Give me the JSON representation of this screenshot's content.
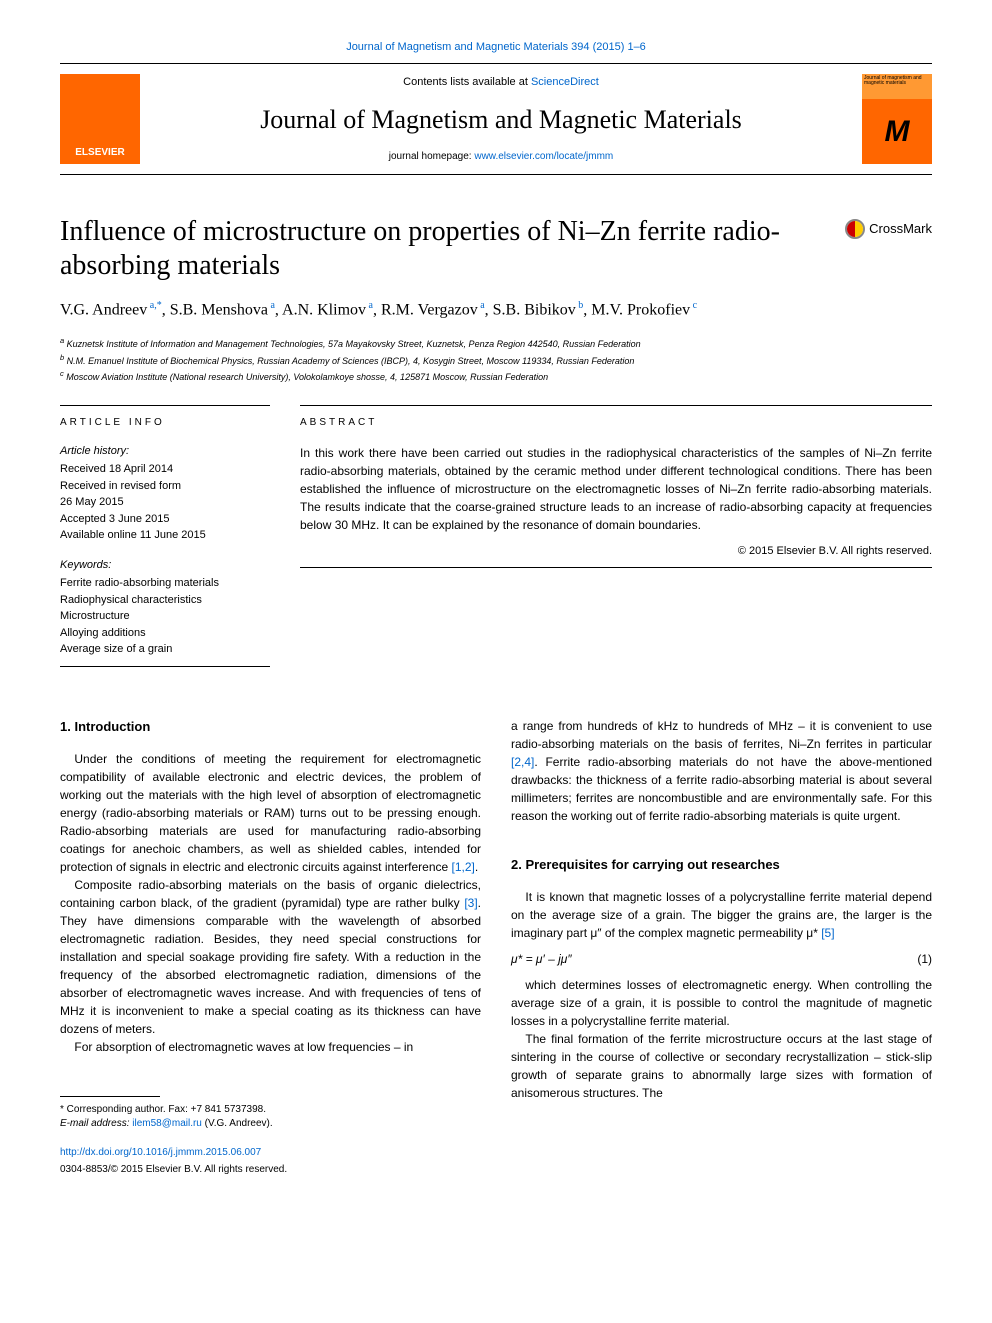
{
  "top_citation": "Journal of Magnetism and Magnetic Materials 394 (2015) 1–6",
  "header": {
    "elsevier": "ELSEVIER",
    "contents_prefix": "Contents lists available at ",
    "contents_link": "ScienceDirect",
    "journal_title": "Journal of Magnetism and Magnetic Materials",
    "homepage_prefix": "journal homepage: ",
    "homepage_link": "www.elsevier.com/locate/jmmm",
    "cover_text": "Journal of magnetism and magnetic materials",
    "cover_glyph": "M"
  },
  "crossmark": "CrossMark",
  "title": "Influence of microstructure on properties of Ni–Zn ferrite radio-absorbing materials",
  "authors_html": [
    {
      "name": "V.G. Andreev",
      "sup": "a,*"
    },
    {
      "name": "S.B. Menshova",
      "sup": "a"
    },
    {
      "name": "A.N. Klimov",
      "sup": "a"
    },
    {
      "name": "R.M. Vergazov",
      "sup": "a"
    },
    {
      "name": "S.B. Bibikov",
      "sup": "b"
    },
    {
      "name": "M.V. Prokofiev",
      "sup": "c"
    }
  ],
  "affiliations": [
    {
      "sup": "a",
      "text": "Kuznetsk Institute of Information and Management Technologies, 57a Mayakovsky Street, Kuznetsk, Penza Region 442540, Russian Federation"
    },
    {
      "sup": "b",
      "text": "N.M. Emanuel Institute of Biochemical Physics, Russian Academy of Sciences (IBCP), 4, Kosygin Street, Moscow 119334, Russian Federation"
    },
    {
      "sup": "c",
      "text": "Moscow Aviation Institute (National research University), Volokolamkoye shosse, 4, 125871 Moscow, Russian Federation"
    }
  ],
  "article_info": {
    "heading": "ARTICLE INFO",
    "history_label": "Article history:",
    "history": "Received 18 April 2014\nReceived in revised form\n26 May 2015\nAccepted 3 June 2015\nAvailable online 11 June 2015",
    "keywords_label": "Keywords:",
    "keywords": "Ferrite radio-absorbing materials\nRadiophysical characteristics\nMicrostructure\nAlloying additions\nAverage size of a grain"
  },
  "abstract": {
    "heading": "ABSTRACT",
    "text": "In this work there have been carried out studies in the radiophysical characteristics of the samples of Ni–Zn ferrite radio-absorbing materials, obtained by the ceramic method under different technological conditions. There has been established the influence of microstructure on the electromagnetic losses of Ni–Zn ferrite radio-absorbing materials. The results indicate that the coarse-grained structure leads to an increase of radio-absorbing capacity at frequencies below 30 MHz. It can be explained by the resonance of domain boundaries.",
    "copyright": "© 2015 Elsevier B.V. All rights reserved."
  },
  "sections": {
    "intro_heading": "1. Introduction",
    "intro_p1": "Under the conditions of meeting the requirement for electromagnetic compatibility of available electronic and electric devices, the problem of working out the materials with the high level of absorption of electromagnetic energy (radio-absorbing materials or RAM) turns out to be pressing enough. Radio-absorbing materials are used for manufacturing radio-absorbing coatings for anechoic chambers, as well as shielded cables, intended for protection of signals in electric and electronic circuits against interference ",
    "intro_ref1": "[1,2]",
    "intro_p1_end": ".",
    "intro_p2a": "Composite radio-absorbing materials on the basis of organic dielectrics, containing carbon black, of the gradient (pyramidal) type are rather bulky ",
    "intro_ref2": "[3]",
    "intro_p2b": ". They have dimensions comparable with the wavelength of absorbed electromagnetic radiation. Besides, they need special constructions for installation and special soakage providing fire safety. With a reduction in the frequency of the absorbed electromagnetic radiation, dimensions of the absorber of electromagnetic waves increase. And with frequencies of tens of MHz it is inconvenient to make a special coating as its thickness can have dozens of meters.",
    "intro_p3": "For absorption of electromagnetic waves at low frequencies – in",
    "col2_p1a": "a range from hundreds of kHz to hundreds of MHz – it is convenient to use radio-absorbing materials on the basis of ferrites, Ni–Zn ferrites in particular ",
    "col2_ref1": "[2,4]",
    "col2_p1b": ". Ferrite radio-absorbing materials do not have the above-mentioned drawbacks: the thickness of a ferrite radio-absorbing material is about several millimeters; ferrites are noncombustible and are environmentally safe. For this reason the working out of ferrite radio-absorbing materials is quite urgent.",
    "prereq_heading": "2. Prerequisites for carrying out researches",
    "prereq_p1a": "It is known that magnetic losses of a polycrystalline ferrite material depend on the average size of a grain. The bigger the grains are, the larger is the imaginary part μ″ of the complex magnetic permeability μ* ",
    "prereq_ref1": "[5]",
    "eq1": "μ* = μ′ – jμ″",
    "eq1_num": "(1)",
    "prereq_p2": "which determines losses of electromagnetic energy. When controlling the average size of a grain, it is possible to control the magnitude of magnetic losses in a polycrystalline ferrite material.",
    "prereq_p3": "The final formation of the ferrite microstructure occurs at the last stage of sintering in the course of collective or secondary recrystallization – stick-slip growth of separate grains to abnormally large sizes with formation of anisomerous structures. The"
  },
  "footnote": {
    "corr": "* Corresponding author. Fax: +7 841 5737398.",
    "email_label": "E-mail address: ",
    "email": "ilem58@mail.ru",
    "email_who": " (V.G. Andreev)."
  },
  "bottom": {
    "doi": "http://dx.doi.org/10.1016/j.jmmm.2015.06.007",
    "copy": "0304-8853/© 2015 Elsevier B.V. All rights reserved."
  },
  "colors": {
    "link": "#0066cc",
    "elsevier_orange": "#ff6600",
    "cover_top": "#ff9933"
  }
}
